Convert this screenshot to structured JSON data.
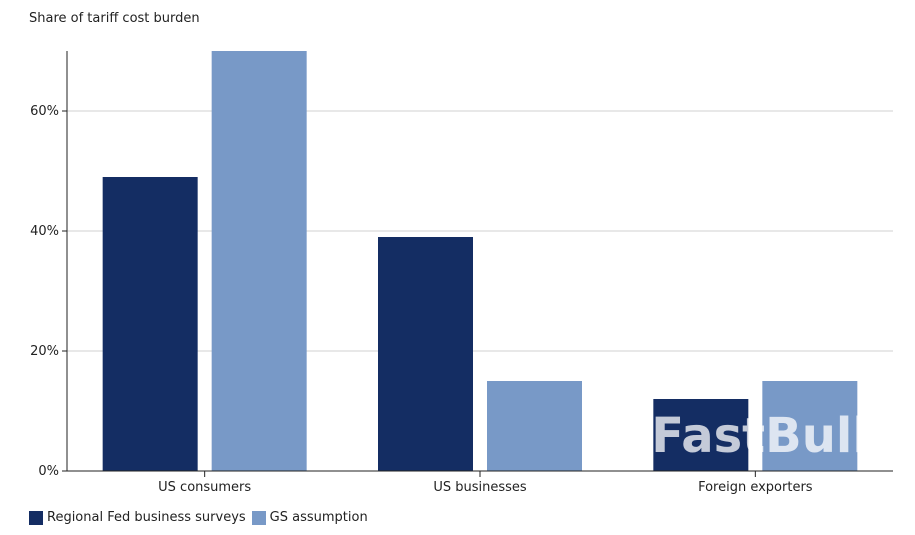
{
  "chart_data": {
    "type": "bar",
    "title": "Share of tariff cost burden",
    "categories": [
      "US consumers",
      "US businesses",
      "Foreign exporters"
    ],
    "series": [
      {
        "name": "Regional Fed business surveys",
        "color": "#142d63",
        "values": [
          49,
          39,
          12
        ]
      },
      {
        "name": "GS assumption",
        "color": "#7899c7",
        "values": [
          70,
          15,
          15
        ]
      }
    ],
    "ylim": [
      0,
      70
    ],
    "yticks": [
      0,
      20,
      40,
      60
    ],
    "ytick_labels": [
      "0%",
      "20%",
      "40%",
      "60%"
    ],
    "grid": true,
    "legend": "bottom-left"
  },
  "watermark": "FastBull"
}
